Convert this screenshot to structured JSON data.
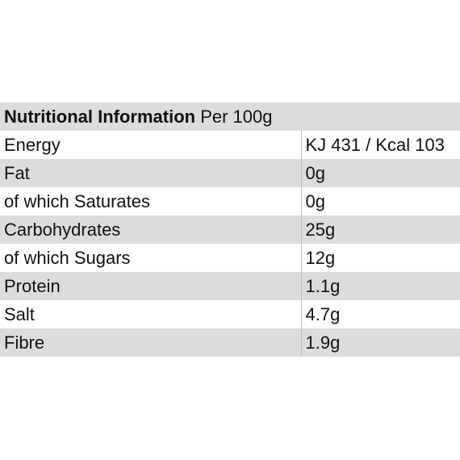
{
  "table": {
    "title_bold": "Nutritional Information",
    "title_rest": " Per 100g",
    "rows": [
      {
        "label": "Energy",
        "value": "KJ 431 / Kcal 103"
      },
      {
        "label": "Fat",
        "value": "0g"
      },
      {
        "label": "of which Saturates",
        "value": "0g"
      },
      {
        "label": "Carbohydrates",
        "value": "25g"
      },
      {
        "label": "of which Sugars",
        "value": "12g"
      },
      {
        "label": "Protein",
        "value": "1.1g"
      },
      {
        "label": "Salt",
        "value": "4.7g"
      },
      {
        "label": "Fibre",
        "value": "1.9g"
      }
    ]
  },
  "colors": {
    "shaded_row": "#dcdcdc",
    "plain_row": "#ffffff",
    "text": "#111111"
  }
}
